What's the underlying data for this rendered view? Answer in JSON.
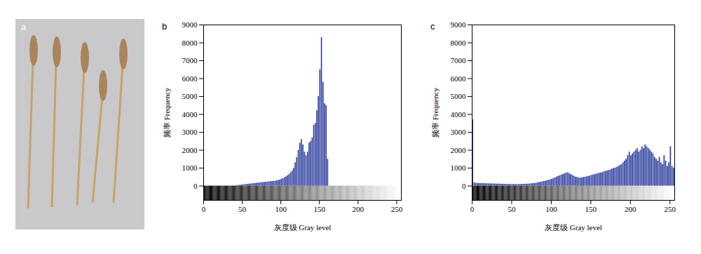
{
  "chart_data": [
    {
      "type": "image",
      "title": "a"
    },
    {
      "type": "histogram",
      "title": "b",
      "x_label": "灰度级 Gray level",
      "y_label": "频率 Frequency",
      "color": "#2a3b9c",
      "xlim": [
        0,
        256
      ],
      "xticks": [
        0,
        50,
        100,
        150,
        200,
        250
      ],
      "ylim": [
        -800,
        9000
      ],
      "yticks": [
        0,
        1000,
        2000,
        3000,
        4000,
        5000,
        6000,
        7000,
        8000,
        9000
      ],
      "bins": [
        0,
        2,
        4,
        6,
        8,
        10,
        12,
        14,
        16,
        18,
        20,
        22,
        24,
        26,
        28,
        30,
        32,
        34,
        36,
        38,
        40,
        42,
        44,
        46,
        48,
        50,
        52,
        54,
        56,
        58,
        60,
        62,
        64,
        66,
        68,
        70,
        72,
        74,
        76,
        78,
        80,
        82,
        84,
        86,
        88,
        90,
        92,
        94,
        96,
        98,
        100,
        102,
        104,
        106,
        108,
        110,
        112,
        114,
        116,
        118,
        120,
        122,
        124,
        126,
        128,
        130,
        132,
        134,
        136,
        138,
        140,
        142,
        144,
        146,
        148,
        150,
        152,
        154,
        156,
        158,
        160,
        162,
        164,
        166,
        168,
        170,
        172,
        174,
        176,
        178,
        180,
        182,
        184,
        186,
        188,
        190,
        192,
        194,
        196,
        198,
        200,
        202,
        204,
        206,
        208,
        210,
        212,
        214,
        216,
        218,
        220,
        222,
        224,
        226,
        228,
        230,
        232,
        234,
        236,
        238,
        240,
        242,
        244,
        246,
        248,
        250,
        252,
        254,
        256
      ],
      "values": [
        0,
        0,
        0,
        0,
        0,
        0,
        0,
        0,
        0,
        0,
        0,
        0,
        0,
        0,
        0,
        0,
        0,
        0,
        0,
        0,
        20,
        30,
        40,
        50,
        60,
        70,
        80,
        90,
        100,
        110,
        120,
        130,
        140,
        150,
        160,
        170,
        180,
        190,
        200,
        210,
        220,
        230,
        240,
        250,
        260,
        270,
        280,
        300,
        320,
        340,
        380,
        420,
        470,
        520,
        580,
        650,
        750,
        850,
        1000,
        1300,
        1600,
        2000,
        2400,
        2600,
        2300,
        1900,
        1700,
        1900,
        2400,
        2500,
        2700,
        3400,
        3500,
        4200,
        5000,
        6500,
        8300,
        5800,
        4600,
        4500,
        1500,
        0,
        0,
        0,
        0,
        0,
        0,
        0,
        0,
        0,
        0,
        0,
        0,
        0,
        0,
        0,
        0,
        0,
        0,
        0,
        0,
        0,
        0,
        0,
        0,
        0,
        0,
        0,
        0,
        0,
        0,
        0,
        0,
        0,
        0,
        0,
        0,
        0,
        0,
        0,
        0,
        0,
        0,
        0,
        0,
        0,
        0,
        0
      ]
    },
    {
      "type": "histogram",
      "title": "c",
      "x_label": "灰度级 Gray level",
      "y_label": "频率 Frequency",
      "color": "#2a3b9c",
      "xlim": [
        0,
        256
      ],
      "xticks": [
        0,
        50,
        100,
        150,
        200,
        250
      ],
      "ylim": [
        -800,
        9000
      ],
      "yticks": [
        0,
        1000,
        2000,
        3000,
        4000,
        5000,
        6000,
        7000,
        8000,
        9000
      ],
      "bins": [
        0,
        2,
        4,
        6,
        8,
        10,
        12,
        14,
        16,
        18,
        20,
        22,
        24,
        26,
        28,
        30,
        32,
        34,
        36,
        38,
        40,
        42,
        44,
        46,
        48,
        50,
        52,
        54,
        56,
        58,
        60,
        62,
        64,
        66,
        68,
        70,
        72,
        74,
        76,
        78,
        80,
        82,
        84,
        86,
        88,
        90,
        92,
        94,
        96,
        98,
        100,
        102,
        104,
        106,
        108,
        110,
        112,
        114,
        116,
        118,
        120,
        122,
        124,
        126,
        128,
        130,
        132,
        134,
        136,
        138,
        140,
        142,
        144,
        146,
        148,
        150,
        152,
        154,
        156,
        158,
        160,
        162,
        164,
        166,
        168,
        170,
        172,
        174,
        176,
        178,
        180,
        182,
        184,
        186,
        188,
        190,
        192,
        194,
        196,
        198,
        200,
        202,
        204,
        206,
        208,
        210,
        212,
        214,
        216,
        218,
        220,
        222,
        224,
        226,
        228,
        230,
        232,
        234,
        236,
        238,
        240,
        242,
        244,
        246,
        248,
        250,
        252,
        254,
        256
      ],
      "values": [
        3700,
        180,
        160,
        150,
        150,
        140,
        150,
        140,
        130,
        140,
        130,
        120,
        130,
        120,
        120,
        110,
        120,
        110,
        100,
        110,
        100,
        100,
        90,
        100,
        90,
        90,
        90,
        90,
        80,
        90,
        90,
        100,
        100,
        100,
        110,
        110,
        120,
        130,
        140,
        150,
        160,
        180,
        200,
        220,
        240,
        260,
        280,
        300,
        330,
        350,
        380,
        420,
        460,
        500,
        540,
        580,
        620,
        650,
        680,
        720,
        750,
        700,
        650,
        600,
        550,
        500,
        480,
        460,
        450,
        460,
        480,
        500,
        520,
        540,
        560,
        600,
        620,
        640,
        660,
        700,
        720,
        740,
        760,
        800,
        820,
        850,
        880,
        900,
        950,
        1000,
        1000,
        1050,
        1100,
        1150,
        1200,
        1300,
        1400,
        1500,
        1700,
        1900,
        1700,
        1800,
        1900,
        2000,
        2100,
        1900,
        2000,
        2200,
        2100,
        2300,
        2200,
        2100,
        2000,
        1900,
        1800,
        1600,
        1500,
        1400,
        1600,
        1300,
        1200,
        1700,
        1400,
        1100,
        1300,
        2200,
        1100,
        1000
      ]
    }
  ]
}
